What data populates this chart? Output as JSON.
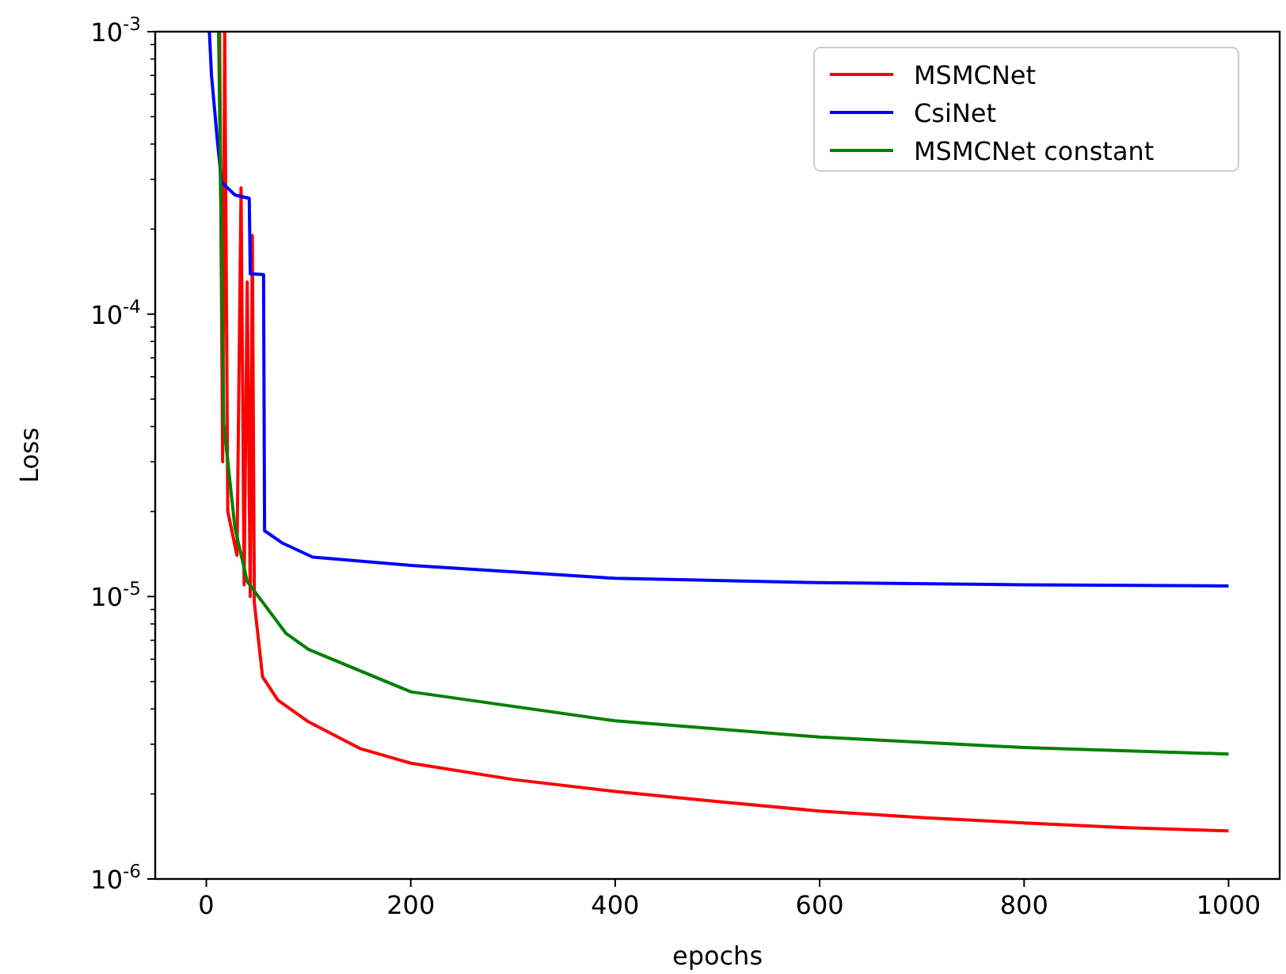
{
  "chart_data": {
    "type": "line",
    "xlabel": "epochs",
    "ylabel": "Loss",
    "log": "y",
    "xlim": [
      -50,
      1050
    ],
    "ylim": [
      1e-06,
      0.001
    ],
    "xticks": [
      0,
      200,
      400,
      600,
      800,
      1000
    ],
    "yticks": [
      {
        "value": 1e-06,
        "label": "10$^{-6}$"
      },
      {
        "value": 1e-05,
        "label": "10$^{-5}$"
      },
      {
        "value": 0.0001,
        "label": "10$^{-4}$"
      },
      {
        "value": 0.001,
        "label": "10$^{-3}$"
      }
    ],
    "legend": "top right",
    "grid": false,
    "marker": "none",
    "line_style": "solid",
    "series": [
      {
        "name": "MSMCNet",
        "color": "#ff0000",
        "x": [
          13,
          16,
          18,
          21,
          30,
          34,
          37,
          40,
          43,
          45,
          47,
          55,
          70,
          100,
          150,
          200,
          300,
          400,
          500,
          600,
          700,
          800,
          900,
          1000
        ],
        "values": [
          0.001,
          3e-05,
          0.001,
          2e-05,
          1.4e-05,
          0.00028,
          1.1e-05,
          0.00013,
          1e-05,
          0.00019,
          9.5e-06,
          5.2e-06,
          4.3e-06,
          3.6e-06,
          2.9e-06,
          2.57e-06,
          2.25e-06,
          2.04e-06,
          1.88e-06,
          1.74e-06,
          1.65e-06,
          1.58e-06,
          1.52e-06,
          1.48e-06
        ]
      },
      {
        "name": "CsiNet",
        "color": "#0000ff",
        "x": [
          3,
          5,
          11,
          15,
          28,
          42,
          43,
          56,
          57,
          74,
          104,
          200,
          400,
          600,
          800,
          1000
        ],
        "values": [
          0.001,
          0.000706,
          0.000405,
          0.000293,
          0.000264,
          0.000257,
          0.000139,
          0.000138,
          1.71e-05,
          1.55e-05,
          1.38e-05,
          1.29e-05,
          1.16e-05,
          1.12e-05,
          1.1e-05,
          1.09e-05
        ]
      },
      {
        "name": "MSMCNet constant",
        "color": "#008000",
        "x": [
          12,
          15,
          17,
          28,
          40,
          78,
          100,
          200,
          400,
          600,
          800,
          1000
        ],
        "values": [
          0.001,
          0.00015,
          4.1e-05,
          1.75e-05,
          1.13e-05,
          7.4e-06,
          6.5e-06,
          4.6e-06,
          3.63e-06,
          3.18e-06,
          2.92e-06,
          2.77e-06
        ]
      }
    ]
  }
}
